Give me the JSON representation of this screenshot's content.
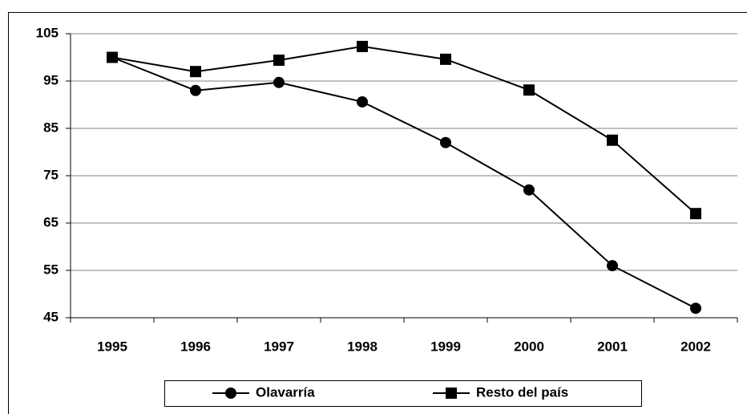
{
  "chart_data": {
    "type": "line",
    "categories": [
      "1995",
      "1996",
      "1997",
      "1998",
      "1999",
      "2000",
      "2001",
      "2002"
    ],
    "series": [
      {
        "name": "Olavarría",
        "color": "#000000",
        "marker": "circle",
        "values": [
          100,
          93,
          94.7,
          90.6,
          82,
          72,
          56,
          47
        ]
      },
      {
        "name": "Resto del país",
        "color": "#000000",
        "marker": "square",
        "values": [
          100,
          97,
          99.4,
          102.3,
          99.6,
          93.1,
          82.5,
          67
        ]
      }
    ],
    "ylim": [
      45,
      105
    ],
    "yticks": [
      45,
      55,
      65,
      75,
      85,
      95,
      105
    ],
    "grid": true
  }
}
